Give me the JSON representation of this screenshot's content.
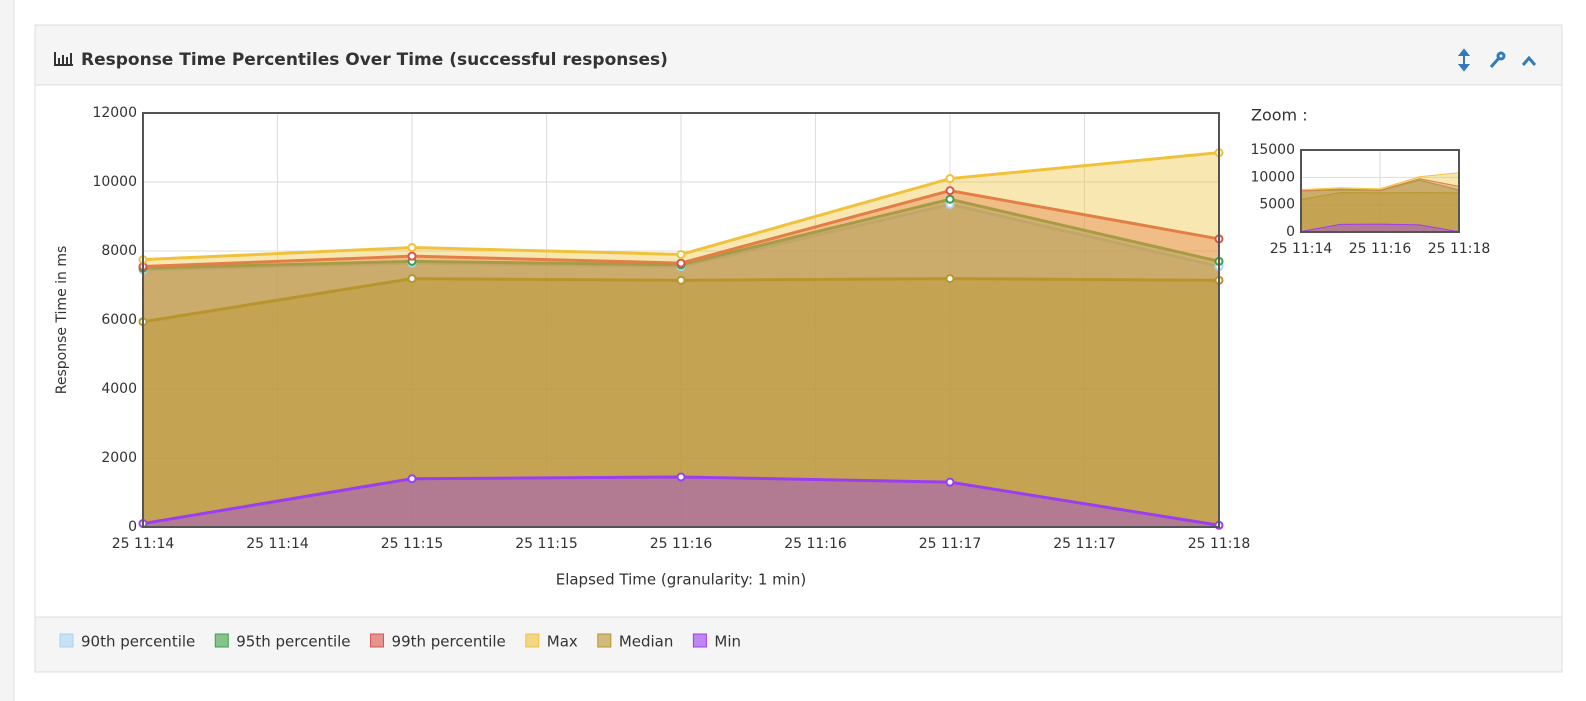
{
  "panel_title": "Response Time Percentiles Over Time (successful responses)",
  "chart_data": {
    "type": "area",
    "x_label": "Elapsed Time (granularity: 1 min)",
    "y_label": "Response Time in ms",
    "x": [
      "25 11:14",
      "25 11:15",
      "25 11:16",
      "25 11:17",
      "25 11:18"
    ],
    "xticks": [
      "25 11:14",
      "25 11:14",
      "25 11:15",
      "25 11:15",
      "25 11:16",
      "25 11:16",
      "25 11:17",
      "25 11:17",
      "25 11:18"
    ],
    "ylim": [
      0,
      12000
    ],
    "yticks": [
      0,
      2000,
      4000,
      6000,
      8000,
      10000,
      12000
    ],
    "grid": true,
    "series": [
      {
        "name": "90th percentile",
        "color": "#a8d4f5",
        "values": [
          7450,
          7650,
          7550,
          9350,
          7550
        ]
      },
      {
        "name": "95th percentile",
        "color": "#3aa04a",
        "values": [
          7500,
          7700,
          7600,
          9500,
          7700
        ]
      },
      {
        "name": "99th percentile",
        "color": "#d9534f",
        "values": [
          7550,
          7850,
          7650,
          9750,
          8350
        ]
      },
      {
        "name": "Max",
        "color": "#f0c23c",
        "values": [
          7750,
          8100,
          7900,
          10100,
          10850
        ]
      },
      {
        "name": "Median",
        "color": "#b8952c",
        "values": [
          5950,
          7200,
          7150,
          7200,
          7150
        ]
      },
      {
        "name": "Min",
        "color": "#9b3ef0",
        "values": [
          100,
          1400,
          1450,
          1300,
          50
        ]
      }
    ]
  },
  "zoom": {
    "title": "Zoom :",
    "ylim": [
      0,
      15000
    ],
    "yticks": [
      0,
      5000,
      10000,
      15000
    ],
    "xticks": [
      "25 11:14",
      "25 11:16",
      "25 11:18"
    ]
  }
}
